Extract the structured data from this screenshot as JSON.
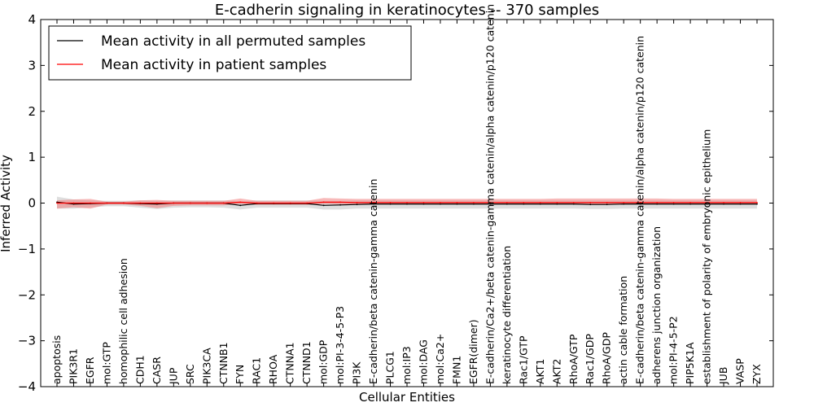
{
  "chart_data": {
    "type": "line",
    "title": "E-cadherin signaling in keratinocytes -- 370 samples",
    "xlabel": "Cellular Entities",
    "ylabel": "Inferred Activity",
    "ylim": [
      -4,
      4
    ],
    "yticks": [
      -4,
      -3,
      -2,
      -1,
      0,
      1,
      2,
      3,
      4
    ],
    "ytick_labels": [
      "−4",
      "−3",
      "−2",
      "−1",
      "0",
      "1",
      "2",
      "3",
      "4"
    ],
    "legend_position": "top-left",
    "categories": [
      "apoptosis",
      "PIK3R1",
      "EGFR",
      "mol:GTP",
      "homophilic cell adhesion",
      "CDH1",
      "CASR",
      "JUP",
      "SRC",
      "PIK3CA",
      "CTNNB1",
      "FYN",
      "RAC1",
      "RHOA",
      "CTNNA1",
      "CTNND1",
      "mol:GDP",
      "mol:PI-3-4-5-P3",
      "PI3K",
      "E-cadherin/beta catenin-gamma catenin",
      "PLCG1",
      "mol:IP3",
      "mol:DAG",
      "mol:Ca2+",
      "FMN1",
      "EGFR(dimer)",
      "E-cadherin/Ca2+/beta catenin-gamma catenin/alpha catenin/p120 catenin",
      "keratinocyte differentiation",
      "Rac1/GTP",
      "AKT1",
      "AKT2",
      "RhoA/GTP",
      "Rac1/GDP",
      "RhoA/GDP",
      "actin cable formation",
      "E-cadherin/beta catenin-gamma catenin/alpha catenin/p120 catenin",
      "adherens junction organization",
      "mol:PI-4-5-P2",
      "PIP5K1A",
      "establishment of polarity of embryonic epithelium",
      "JUB",
      "VASP",
      "ZYX"
    ],
    "series": [
      {
        "name": "Mean activity in all permuted samples",
        "color": "#000000",
        "band_color": "#c8c8c8",
        "values": [
          0.02,
          -0.02,
          -0.01,
          0.0,
          0.0,
          -0.01,
          -0.02,
          0.0,
          0.0,
          0.0,
          0.0,
          -0.05,
          -0.01,
          -0.01,
          -0.01,
          -0.01,
          -0.05,
          -0.04,
          -0.03,
          -0.02,
          -0.02,
          -0.02,
          -0.02,
          -0.02,
          -0.02,
          -0.02,
          -0.02,
          -0.02,
          -0.02,
          -0.02,
          -0.02,
          -0.02,
          -0.03,
          -0.03,
          -0.02,
          -0.02,
          -0.02,
          -0.02,
          -0.02,
          -0.02,
          -0.02,
          -0.02,
          -0.02
        ],
        "band_lower": [
          -0.12,
          -0.12,
          -0.09,
          -0.07,
          -0.07,
          -0.1,
          -0.13,
          -0.1,
          -0.09,
          -0.09,
          -0.1,
          -0.14,
          -0.1,
          -0.1,
          -0.1,
          -0.1,
          -0.14,
          -0.14,
          -0.12,
          -0.12,
          -0.12,
          -0.12,
          -0.12,
          -0.12,
          -0.12,
          -0.12,
          -0.12,
          -0.12,
          -0.12,
          -0.12,
          -0.12,
          -0.12,
          -0.13,
          -0.13,
          -0.12,
          -0.12,
          -0.12,
          -0.12,
          -0.12,
          -0.12,
          -0.12,
          -0.12,
          -0.12
        ],
        "band_upper": [
          0.14,
          0.08,
          0.06,
          0.05,
          0.05,
          0.06,
          0.05,
          0.06,
          0.06,
          0.06,
          0.06,
          0.04,
          0.06,
          0.06,
          0.06,
          0.06,
          0.05,
          0.05,
          0.06,
          0.06,
          0.06,
          0.06,
          0.06,
          0.06,
          0.06,
          0.06,
          0.06,
          0.06,
          0.06,
          0.06,
          0.06,
          0.06,
          0.06,
          0.06,
          0.06,
          0.06,
          0.06,
          0.06,
          0.06,
          0.06,
          0.06,
          0.06,
          0.06
        ]
      },
      {
        "name": "Mean activity in patient samples",
        "color": "#ff0000",
        "band_color": "#f08080",
        "values": [
          0.0,
          0.0,
          0.0,
          0.0,
          0.0,
          0.0,
          0.0,
          0.0,
          0.0,
          0.0,
          0.0,
          0.02,
          0.0,
          0.0,
          0.0,
          0.0,
          0.02,
          0.02,
          0.01,
          0.01,
          0.01,
          0.01,
          0.01,
          0.01,
          0.01,
          0.01,
          0.01,
          0.01,
          0.01,
          0.01,
          0.01,
          0.01,
          0.01,
          0.01,
          0.01,
          0.01,
          0.01,
          0.01,
          0.01,
          0.01,
          0.01,
          0.01,
          0.01
        ],
        "band_lower": [
          -0.12,
          -0.09,
          -0.12,
          -0.03,
          -0.03,
          -0.06,
          -0.11,
          -0.06,
          -0.05,
          -0.05,
          -0.05,
          -0.02,
          -0.04,
          -0.04,
          -0.04,
          -0.04,
          -0.02,
          -0.03,
          -0.03,
          -0.03,
          -0.03,
          -0.03,
          -0.03,
          -0.03,
          -0.03,
          -0.03,
          -0.03,
          -0.03,
          -0.03,
          -0.03,
          -0.03,
          -0.03,
          -0.04,
          -0.04,
          -0.03,
          -0.03,
          -0.03,
          -0.03,
          -0.03,
          -0.03,
          -0.03,
          -0.03,
          -0.03
        ],
        "band_upper": [
          0.06,
          0.08,
          0.09,
          0.03,
          0.03,
          0.06,
          0.07,
          0.05,
          0.05,
          0.05,
          0.05,
          0.1,
          0.05,
          0.05,
          0.05,
          0.05,
          0.11,
          0.1,
          0.09,
          0.09,
          0.09,
          0.09,
          0.09,
          0.09,
          0.09,
          0.09,
          0.09,
          0.09,
          0.09,
          0.09,
          0.1,
          0.1,
          0.1,
          0.1,
          0.1,
          0.1,
          0.1,
          0.09,
          0.09,
          0.09,
          0.09,
          0.09,
          0.09
        ]
      }
    ]
  }
}
